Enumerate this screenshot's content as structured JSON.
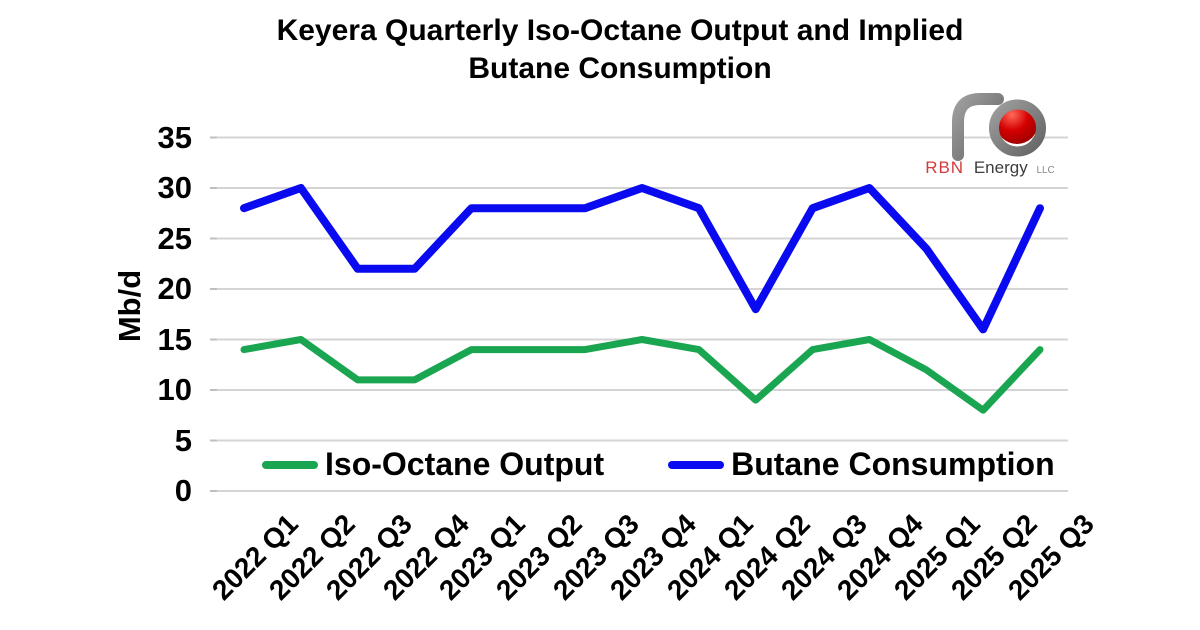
{
  "title": {
    "line1": "Keyera Quarterly Iso-Octane Output and Implied",
    "line2": "Butane Consumption"
  },
  "logo": {
    "rbn": "RBN",
    "energy": "Energy",
    "llc": "LLC",
    "rbn_color": "#d43b3b",
    "tube_color": "#7a7a7a",
    "ball_color": "#c00000"
  },
  "chart_data": {
    "type": "line",
    "title": "Keyera Quarterly Iso-Octane Output and Implied Butane Consumption",
    "xlabel": "",
    "ylabel": "Mb/d",
    "ylim": [
      0,
      35
    ],
    "yticks": [
      0,
      5,
      10,
      15,
      20,
      25,
      30,
      35
    ],
    "grid": "horizontal",
    "gridline_color": "#d4d4d4",
    "legend_position": "bottom-inside",
    "categories": [
      "2022 Q1",
      "2022 Q2",
      "2022 Q3",
      "2022 Q4",
      "2023 Q1",
      "2023 Q2",
      "2023 Q3",
      "2023 Q4",
      "2024 Q1",
      "2024 Q2",
      "2024 Q3",
      "2024 Q4",
      "2025 Q1",
      "2025 Q2",
      "2025 Q3"
    ],
    "series": [
      {
        "name": "Iso-Octane Output",
        "color": "#1aa551",
        "values": [
          14,
          15,
          11,
          11,
          14,
          14,
          14,
          15,
          14,
          9,
          14,
          15,
          12,
          8,
          14
        ]
      },
      {
        "name": "Butane Consumption",
        "color": "#0a0af0",
        "values": [
          28,
          30,
          22,
          22,
          28,
          28,
          28,
          30,
          28,
          18,
          28,
          30,
          24,
          16,
          28
        ]
      }
    ]
  }
}
